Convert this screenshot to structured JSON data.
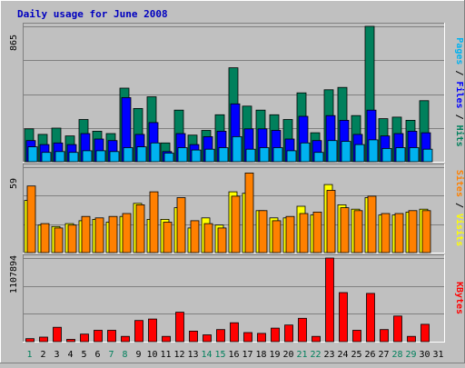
{
  "chart_data": {
    "type": "bar",
    "title": "Daily usage for June 2008",
    "days": [
      "1",
      "2",
      "3",
      "4",
      "5",
      "6",
      "7",
      "8",
      "9",
      "10",
      "11",
      "12",
      "13",
      "14",
      "15",
      "16",
      "17",
      "18",
      "19",
      "20",
      "21",
      "22",
      "23",
      "24",
      "25",
      "26",
      "27",
      "28",
      "29",
      "30",
      "31"
    ],
    "weekend_days": [
      "1",
      "7",
      "8",
      "14",
      "15",
      "21",
      "22",
      "28",
      "29"
    ],
    "panels": [
      {
        "id": "top",
        "max_label": "865",
        "ylim": [
          0,
          865
        ],
        "legend": [
          {
            "text": "Pages",
            "color": "#00b2f0"
          },
          {
            "text": " / ",
            "color": "#000000"
          },
          {
            "text": "Files",
            "color": "#0000ff"
          },
          {
            "text": " / ",
            "color": "#000000"
          },
          {
            "text": "Hits",
            "color": "#00805c"
          }
        ],
        "series": [
          {
            "name": "Hits",
            "color": "#00805c",
            "values": [
              210,
              175,
              215,
              165,
              270,
              195,
              180,
              470,
              340,
              415,
              120,
              330,
              170,
              200,
              300,
              600,
              355,
              330,
              300,
              270,
              440,
              185,
              460,
              475,
              295,
              865,
              275,
              285,
              265,
              390,
              0
            ]
          },
          {
            "name": "Files",
            "color": "#0000ff",
            "values": [
              135,
              110,
              120,
              110,
              180,
              145,
              135,
              410,
              175,
              250,
              65,
              180,
              110,
              160,
              195,
              370,
              210,
              210,
              200,
              145,
              290,
              135,
              295,
              265,
              175,
              330,
              165,
              180,
              195,
              185,
              0
            ]
          },
          {
            "name": "Pages",
            "color": "#00b2f0",
            "values": [
              95,
              60,
              65,
              60,
              70,
              70,
              65,
              90,
              95,
              120,
              55,
              90,
              75,
              80,
              90,
              160,
              80,
              90,
              90,
              70,
              120,
              60,
              135,
              130,
              110,
              140,
              85,
              90,
              90,
              80,
              0
            ]
          }
        ]
      },
      {
        "id": "mid",
        "max_label": "59",
        "ylim": [
          0,
          59
        ],
        "legend": [
          {
            "text": "Sites",
            "color": "#ff8000"
          },
          {
            "text": " / ",
            "color": "#000000"
          },
          {
            "text": "Visits",
            "color": "#ffff00"
          }
        ],
        "series": [
          {
            "name": "Visits",
            "color": "#ffff00",
            "values": [
              36,
              19,
              18,
              20,
              22,
              23,
              21,
              25,
              34,
              23,
              23,
              31,
              17,
              24,
              19,
              42,
              41,
              29,
              24,
              24,
              32,
              26,
              47,
              33,
              30,
              38,
              26,
              26,
              28,
              30,
              0
            ]
          },
          {
            "name": "Sites",
            "color": "#ff8000",
            "values": [
              46,
              20,
              17,
              19,
              25,
              24,
              25,
              27,
              33,
              42,
              21,
              38,
              22,
              20,
              17,
              39,
              55,
              29,
              22,
              25,
              27,
              28,
              43,
              31,
              29,
              39,
              27,
              27,
              29,
              29,
              0
            ]
          }
        ]
      },
      {
        "id": "bot",
        "max_label": "1107894",
        "ylim": [
          0,
          1107894
        ],
        "legend": [
          {
            "text": "KBytes",
            "color": "#ff0000"
          }
        ],
        "series": [
          {
            "name": "KBytes",
            "color": "#ff0000",
            "values": [
              40000,
              60000,
              190000,
              30000,
              100000,
              150000,
              150000,
              70000,
              280000,
              300000,
              70000,
              390000,
              140000,
              90000,
              160000,
              250000,
              120000,
              110000,
              180000,
              220000,
              310000,
              70000,
              1107894,
              650000,
              150000,
              640000,
              160000,
              340000,
              70000,
              230000,
              0
            ]
          }
        ]
      }
    ],
    "grid": true
  }
}
